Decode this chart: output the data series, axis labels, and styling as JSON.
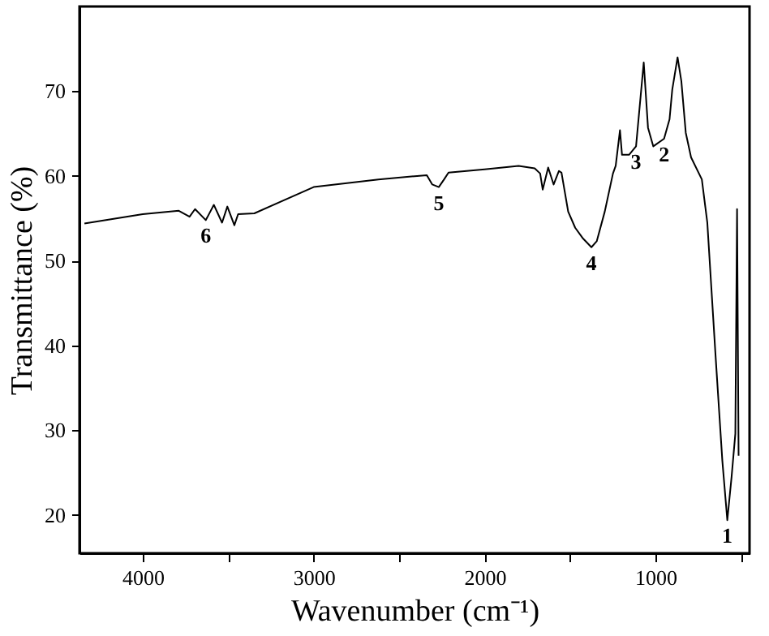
{
  "chart_data": {
    "type": "line",
    "xlabel": "Wavenumber (cm⁻¹)",
    "ylabel": "Transmittance (%)",
    "x": [
      4341,
      4000,
      3789,
      3726,
      3694,
      3631,
      3584,
      3536,
      3505,
      3464,
      3442,
      3347,
      3000,
      2621,
      2338,
      2306,
      2268,
      2237,
      2211,
      2000,
      1801,
      1707,
      1675,
      1660,
      1628,
      1596,
      1565,
      1550,
      1511,
      1470,
      1423,
      1375,
      1344,
      1297,
      1249,
      1233,
      1208,
      1196,
      1155,
      1114,
      1069,
      1044,
      1013,
      950,
      918,
      902,
      871,
      849,
      823,
      792,
      729,
      697,
      650,
      609,
      580,
      555,
      533,
      523,
      514
    ],
    "series": [
      {
        "color": "#000000",
        "values": [
          54.4,
          55.5,
          55.9,
          55.2,
          56.1,
          54.8,
          56.6,
          54.5,
          56.4,
          54.2,
          55.5,
          55.6,
          58.7,
          59.6,
          60.1,
          59.0,
          58.7,
          59.6,
          60.4,
          60.8,
          61.2,
          60.9,
          60.3,
          58.4,
          61.0,
          59.0,
          60.6,
          60.4,
          55.8,
          53.9,
          52.6,
          51.6,
          52.3,
          55.8,
          60.3,
          61.2,
          65.4,
          62.5,
          62.5,
          63.5,
          73.4,
          65.7,
          63.5,
          64.4,
          66.7,
          70.2,
          74.0,
          71.2,
          65.1,
          62.2,
          59.6,
          54.5,
          39.2,
          26.4,
          19.4,
          24.5,
          29.6,
          56.1,
          27.0
        ]
      }
    ],
    "xlim": [
      4370,
      450
    ],
    "ylim": [
      15.5,
      80
    ],
    "xticks": [
      4000,
      {
        "value": 3500,
        "label": null
      },
      3000,
      {
        "value": 2500,
        "label": null
      },
      2000,
      {
        "value": 1500,
        "label": null
      },
      1000,
      {
        "value": 500,
        "label": null
      }
    ],
    "yticks": [
      20,
      30,
      40,
      50,
      60,
      70
    ],
    "annotations": [
      {
        "text": "1",
        "x": 580,
        "y": 19.4
      },
      {
        "text": "2",
        "x": 950,
        "y": 64.4
      },
      {
        "text": "3",
        "x": 1114,
        "y": 63.5
      },
      {
        "text": "4",
        "x": 1375,
        "y": 51.6
      },
      {
        "text": "5",
        "x": 2268,
        "y": 58.7
      },
      {
        "text": "6",
        "x": 3631,
        "y": 54.8
      }
    ]
  }
}
